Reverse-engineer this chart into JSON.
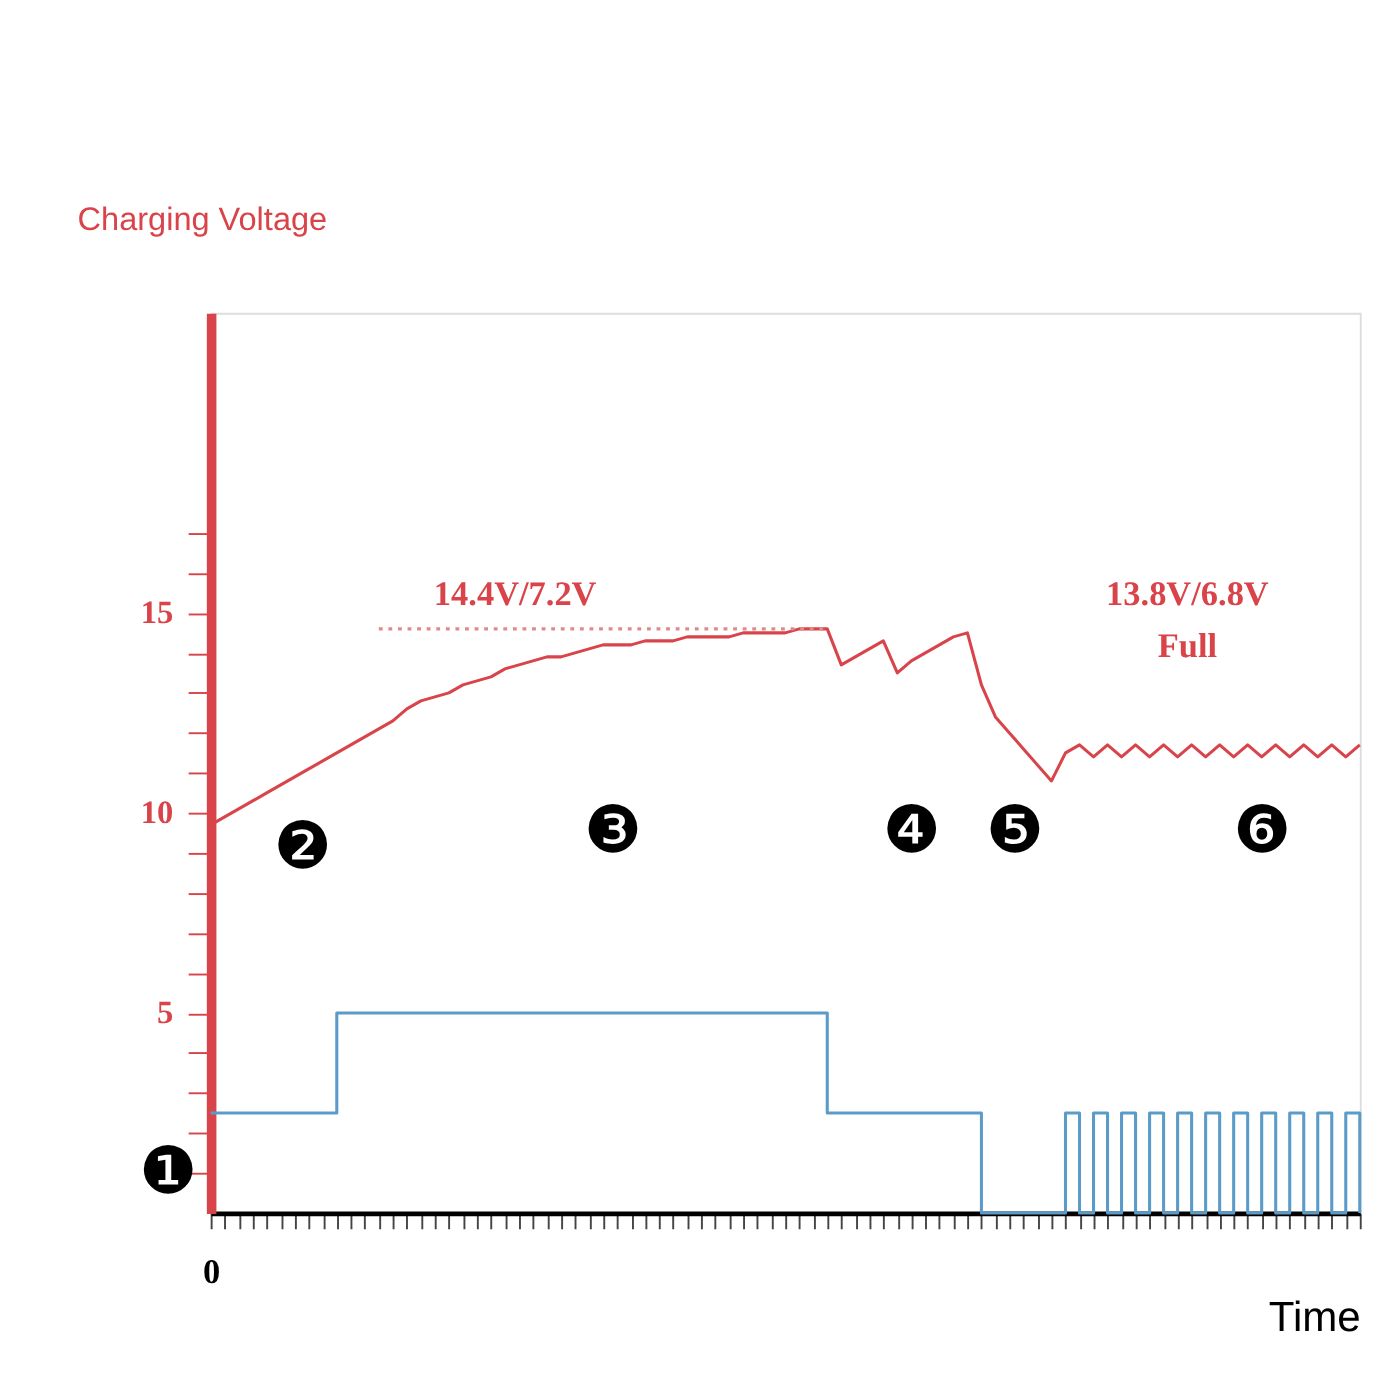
{
  "chart_data": {
    "type": "line",
    "ylabel": "Charging Voltage",
    "xlabel": "Time",
    "categories": [
      "0",
      null,
      null,
      null,
      null,
      null,
      null,
      null,
      null,
      null,
      null,
      null,
      null,
      null,
      null,
      null,
      null,
      null,
      null,
      null,
      null,
      null,
      null,
      null,
      null,
      null,
      null,
      null,
      null,
      null,
      null,
      null,
      null,
      null,
      null,
      null,
      null,
      null,
      null,
      null,
      null,
      null,
      null,
      null,
      null,
      null,
      null,
      null,
      null,
      null,
      null,
      null,
      null,
      null,
      null,
      null,
      null,
      null,
      null,
      null,
      null,
      null,
      null,
      null,
      null,
      null,
      null,
      null,
      null,
      null,
      null,
      null,
      null,
      null,
      null,
      null,
      null,
      null,
      null,
      null,
      null,
      null,
      null
    ],
    "ylim": [
      0,
      22.5
    ],
    "yticks": [
      {
        "value": 1,
        "label": null
      },
      {
        "value": 2,
        "label": null
      },
      {
        "value": 3,
        "label": null
      },
      {
        "value": 4,
        "label": null
      },
      5,
      {
        "value": 6,
        "label": null
      },
      {
        "value": 7,
        "label": null
      },
      {
        "value": 8,
        "label": null
      },
      {
        "value": 9,
        "label": null
      },
      10,
      {
        "value": 11,
        "label": null
      },
      {
        "value": 12,
        "label": null
      },
      {
        "value": 13,
        "label": null
      },
      {
        "value": 14,
        "label": null
      },
      15,
      {
        "value": 16,
        "label": null
      },
      {
        "value": 17,
        "label": null
      }
    ],
    "grid": false,
    "marker": "none",
    "series": [
      {
        "color": "#d9444a",
        "line_style": "solid",
        "values": [
          9.7,
          9.9,
          10.1,
          10.3,
          10.5,
          10.7,
          10.9,
          11.1,
          11.3,
          11.5,
          11.7,
          11.9,
          12.1,
          12.3,
          12.6,
          12.8,
          12.9,
          13.0,
          13.2,
          13.3,
          13.4,
          13.6,
          13.7,
          13.8,
          13.9,
          13.9,
          14.0,
          14.1,
          14.2,
          14.2,
          14.2,
          14.3,
          14.3,
          14.3,
          14.4,
          14.4,
          14.4,
          14.4,
          14.5,
          14.5,
          14.5,
          14.5,
          14.6,
          14.6,
          14.6,
          13.7,
          13.9,
          14.1,
          14.3,
          13.5,
          13.8,
          14.0,
          14.2,
          14.4,
          14.5,
          13.2,
          12.4,
          12.0,
          11.6,
          11.2,
          10.8,
          11.5,
          11.7,
          11.4,
          11.7,
          11.4,
          11.7,
          11.4,
          11.7,
          11.4,
          11.7,
          11.4,
          11.7,
          11.4,
          11.7,
          11.4,
          11.7,
          11.4,
          11.7,
          11.4,
          11.7,
          11.4,
          11.7
        ]
      },
      {
        "type": "step",
        "color": "#5b9bc8",
        "line_style": "solid",
        "values": [
          2.5,
          2.5,
          2.5,
          2.5,
          2.5,
          2.5,
          2.5,
          2.5,
          2.5,
          5,
          5,
          5,
          5,
          5,
          5,
          5,
          5,
          5,
          5,
          5,
          5,
          5,
          5,
          5,
          5,
          5,
          5,
          5,
          5,
          5,
          5,
          5,
          5,
          5,
          5,
          5,
          5,
          5,
          5,
          5,
          5,
          5,
          5,
          5,
          2.5,
          2.5,
          2.5,
          2.5,
          2.5,
          2.5,
          2.5,
          2.5,
          2.5,
          2.5,
          2.5,
          0,
          0,
          0,
          0,
          0,
          0,
          2.5,
          0,
          2.5,
          0,
          2.5,
          0,
          2.5,
          0,
          2.5,
          0,
          2.5,
          0,
          2.5,
          0,
          2.5,
          0,
          2.5,
          0,
          2.5,
          0,
          2.5,
          0
        ]
      },
      {
        "color": "#e08a8c",
        "line_style": "dotted",
        "values": [
          null,
          null,
          null,
          null,
          null,
          null,
          null,
          null,
          null,
          null,
          null,
          null,
          14.6,
          14.6,
          14.6,
          14.6,
          14.6,
          14.6,
          14.6,
          14.6,
          14.6,
          14.6,
          14.6,
          14.6,
          14.6,
          14.6,
          14.6,
          14.6,
          14.6,
          14.6,
          14.6,
          14.6,
          14.6,
          14.6,
          14.6,
          14.6,
          14.6,
          14.6,
          14.6,
          14.6,
          14.6,
          14.6,
          14.6,
          14.6,
          14.6,
          null,
          null,
          null,
          null,
          null,
          null,
          null,
          null,
          null,
          null,
          null,
          null,
          null,
          null,
          null,
          null,
          null,
          null,
          null,
          null,
          null,
          null,
          null,
          null,
          null,
          null,
          null,
          null,
          null,
          null,
          null,
          null,
          null,
          null,
          null,
          null,
          null,
          null
        ]
      }
    ],
    "annotations": [
      "❶",
      "❷",
      "❸",
      "❹",
      "❺",
      "❻",
      "14.4V/7.2V",
      "13.8V/6.8V",
      "Full"
    ]
  }
}
